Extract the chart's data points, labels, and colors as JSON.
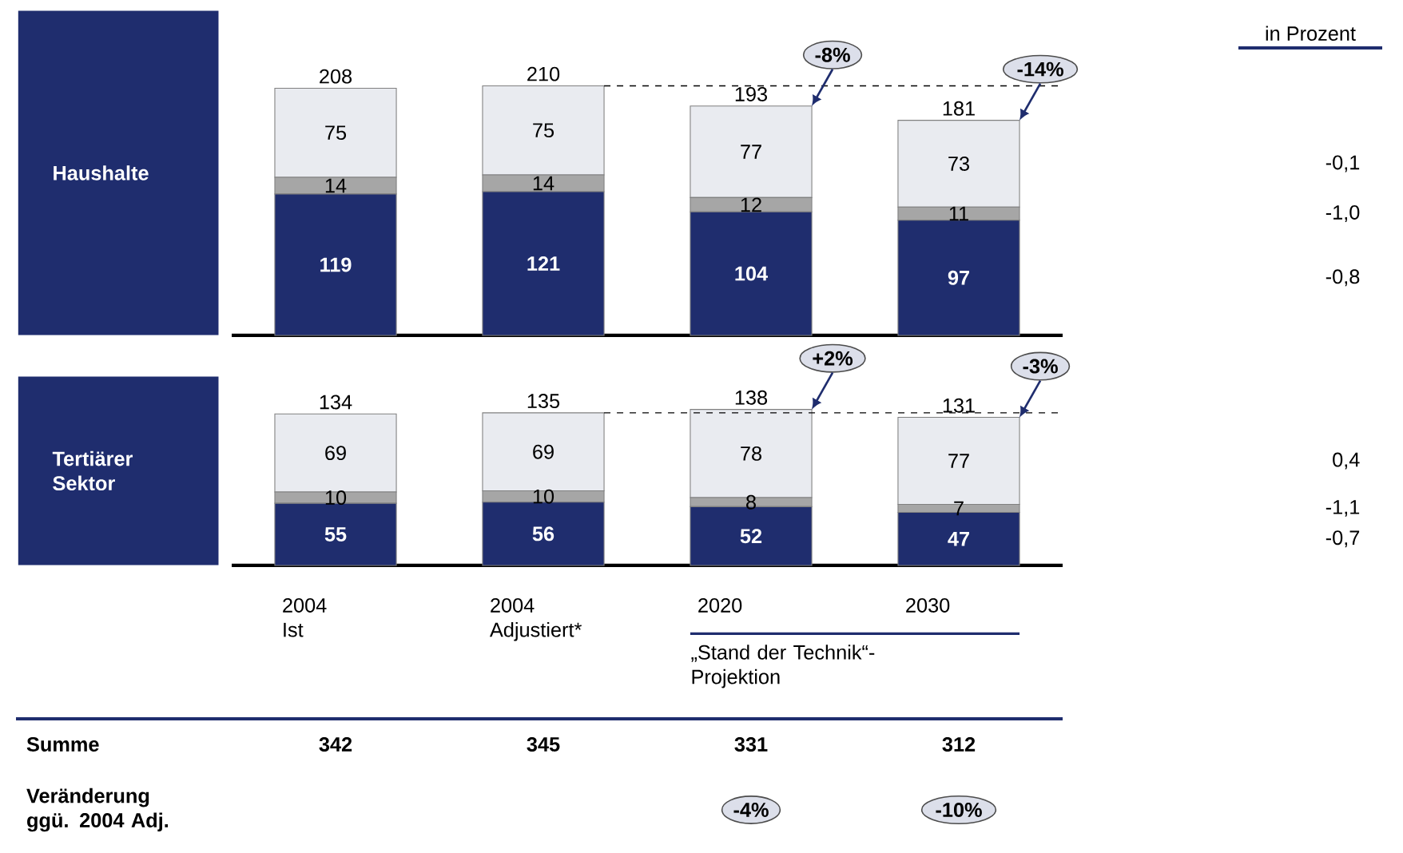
{
  "chart_data": [
    {
      "type": "bar",
      "title": "Haushalte",
      "stacked": true,
      "categories": [
        null,
        null,
        null,
        null
      ],
      "series": [
        {
          "color": "#1f2d6e",
          "values": [
            119,
            121,
            104,
            97
          ]
        },
        {
          "color": "#a6a6a6",
          "values": [
            14,
            14,
            12,
            11
          ]
        },
        {
          "color": "#e9ebf0",
          "values": [
            75,
            75,
            77,
            73
          ]
        }
      ],
      "data_labels": true,
      "totals": [
        "208",
        "210",
        "193",
        "181"
      ],
      "ref_lines": [
        {
          "axis": "y",
          "value": 210,
          "line_style": "dashed"
        }
      ],
      "annotations": [
        "-8%",
        "-14%",
        "-0,1",
        "-1,0",
        "-0,8"
      ]
    },
    {
      "type": "bar",
      "title": "Tertiärer Sektor",
      "stacked": true,
      "categories": [
        "2004 Ist",
        "2004 Adjustiert*",
        "2020",
        "2030"
      ],
      "series": [
        {
          "color": "#1f2d6e",
          "values": [
            55,
            56,
            52,
            47
          ]
        },
        {
          "color": "#a6a6a6",
          "values": [
            10,
            10,
            8,
            7
          ]
        },
        {
          "color": "#e9ebf0",
          "values": [
            69,
            69,
            78,
            77
          ]
        }
      ],
      "data_labels": true,
      "totals": [
        "134",
        "135",
        "138",
        "131"
      ],
      "ref_lines": [
        {
          "axis": "y",
          "value": 135,
          "line_style": "dashed"
        }
      ],
      "annotations": [
        "+2%",
        "-3%",
        "0,4",
        "-1,1",
        "-0,7",
        "„Stand der Technik“-Projektion"
      ]
    },
    {
      "type": "other",
      "annotations": [
        "in Prozent",
        "Summe",
        "342",
        "345",
        "331",
        "312",
        "Veränderung ggü. 2004 Adj.",
        "-4%",
        "-10%"
      ]
    }
  ]
}
